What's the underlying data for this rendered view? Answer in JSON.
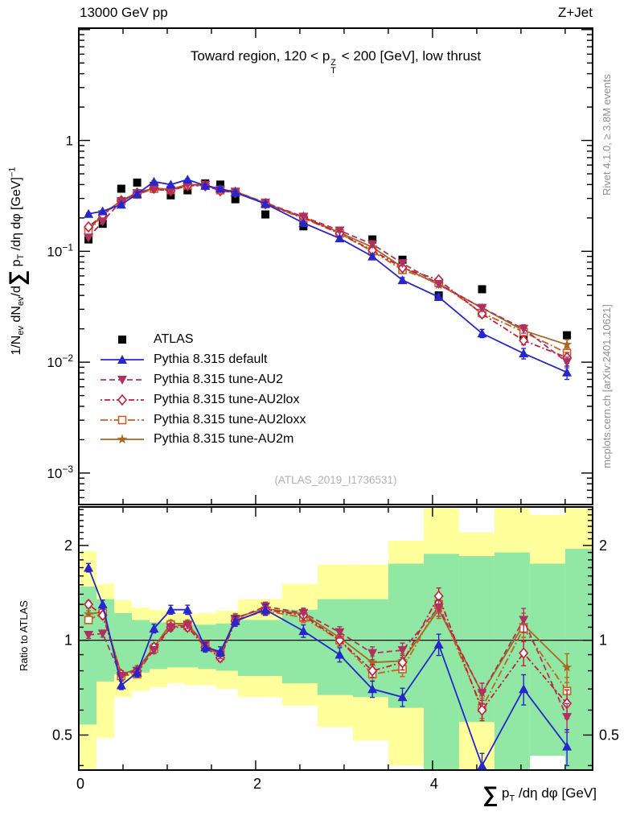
{
  "header": {
    "left": "13000 GeV pp",
    "right": "Z+Jet"
  },
  "title": {
    "pre": "Toward region, 120 < p",
    "sup": "Z",
    "sub": "T",
    "post": " < 200 [GeV], low thrust"
  },
  "watermark": "(ATLAS_2019_I1736531)",
  "side_notes": {
    "top": "Rivet 4.1.0, ≥ 3.8M events",
    "bottom": "mcplots.cern.ch [arXiv:2401.10621]"
  },
  "axes": {
    "x_range": [
      0,
      5.81
    ],
    "x_minor_step": 0.5,
    "x_ticks": [
      {
        "v": 0,
        "t": "0"
      },
      {
        "v": 2,
        "t": "2"
      },
      {
        "v": 4,
        "t": "4"
      }
    ],
    "x_label": {
      "sum": "∑",
      "p": " p",
      "sub": "T",
      "rest": " /dη dφ [GeV]"
    },
    "y_main_range": [
      0.00052,
      10.3
    ],
    "y_main_ticks": [
      {
        "v": 1,
        "t": "1",
        "e": ""
      },
      {
        "v": 0.1,
        "t": "10",
        "e": "−1"
      },
      {
        "v": 0.01,
        "t": "10",
        "e": "−2"
      },
      {
        "v": 0.001,
        "t": "10",
        "e": "−3"
      }
    ],
    "y_main_label": {
      "p1": "1/N",
      "s1": "ev",
      "p2": " dN",
      "s2": "ev",
      "p3": "/d",
      "sum": "∑",
      "p4": " p",
      "s3": "T",
      "p5": " /dη dφ  [GeV]",
      "sup": "−1"
    },
    "y_ratio_range": [
      0.387,
      2.65
    ],
    "y_ratio_ticks": [
      {
        "v": 2,
        "t": "2"
      },
      {
        "v": 1,
        "t": "1"
      },
      {
        "v": 0.5,
        "t": "0.5"
      }
    ],
    "ratio_label": "Ratio to ATLAS"
  },
  "chart_data": {
    "type": "line",
    "title": "Toward region, 120 < pT(Z) < 200 [GeV], low thrust",
    "xlabel": "sum(pT)/deta dphi [GeV]",
    "ylabel": "1/Nev dNev/d sum(pT)/deta dphi [GeV]^-1",
    "ylabel_ratio": "Ratio to ATLAS",
    "x_axis_range": [
      0,
      5.81
    ],
    "y_axis_range_main": [
      0.00052,
      10.3
    ],
    "y_axis_range_ratio": [
      0.387,
      2.65
    ],
    "log_y": true,
    "x": [
      0.11,
      0.27,
      0.48,
      0.66,
      0.85,
      1.04,
      1.23,
      1.43,
      1.6,
      1.77,
      2.11,
      2.54,
      2.95,
      3.32,
      3.66,
      4.07,
      4.56,
      5.03,
      5.52
    ],
    "series": [
      {
        "name": "atlas",
        "label": "ATLAS",
        "color": "#000000",
        "marker": "square-filled",
        "line": "none",
        "values": [
          0.128,
          0.177,
          0.367,
          0.417,
          0.39,
          0.32,
          0.355,
          0.41,
          0.4,
          0.295,
          0.215,
          0.168,
          0.145,
          0.128,
          0.084,
          0.04,
          0.0455,
          0.0172,
          0.0175
        ]
      },
      {
        "name": "pythia-default",
        "label": "Pythia 8.315 default",
        "color": "#2626cc",
        "marker": "triangle-up-filled",
        "line": "solid",
        "values": [
          0.218,
          0.23,
          0.264,
          0.329,
          0.425,
          0.4,
          0.444,
          0.39,
          0.368,
          0.339,
          0.269,
          0.18,
          0.131,
          0.09,
          0.055,
          0.0388,
          0.0182,
          0.012,
          0.0081
        ],
        "ratio": [
          1.7,
          1.3,
          0.72,
          0.79,
          1.09,
          1.25,
          1.25,
          0.95,
          0.92,
          1.15,
          1.25,
          1.07,
          0.9,
          0.7,
          0.66,
          0.97,
          0.4,
          0.7,
          0.46
        ]
      },
      {
        "name": "tune-AU2",
        "label": "Pythia 8.315 tune-AU2",
        "color": "#b03060",
        "marker": "triangle-down-filled",
        "line": "dashed",
        "values": [
          0.133,
          0.186,
          0.283,
          0.334,
          0.363,
          0.352,
          0.398,
          0.398,
          0.36,
          0.345,
          0.275,
          0.205,
          0.154,
          0.116,
          0.078,
          0.0508,
          0.0309,
          0.02,
          0.01
        ],
        "ratio": [
          1.04,
          1.05,
          0.77,
          0.8,
          0.93,
          1.1,
          1.12,
          0.97,
          0.9,
          1.17,
          1.28,
          1.22,
          1.06,
          0.91,
          0.93,
          1.27,
          0.68,
          1.16,
          0.57
        ]
      },
      {
        "name": "tune-AU2lox",
        "label": "Pythia 8.315 tune-AU2lox",
        "color": "#c41e3a",
        "marker": "diamond-open",
        "line": "dashdot",
        "values": [
          0.166,
          0.212,
          0.286,
          0.334,
          0.371,
          0.352,
          0.391,
          0.39,
          0.352,
          0.339,
          0.269,
          0.202,
          0.145,
          0.102,
          0.071,
          0.0552,
          0.0273,
          0.0157,
          0.011
        ],
        "ratio": [
          1.3,
          1.2,
          0.78,
          0.8,
          0.95,
          1.1,
          1.1,
          0.95,
          0.88,
          1.15,
          1.25,
          1.2,
          1.0,
          0.8,
          0.85,
          1.38,
          0.6,
          0.91,
          0.63
        ]
      },
      {
        "name": "tune-AU2loxx",
        "label": "Pythia 8.315 tune-AU2loxx",
        "color": "#c8601e",
        "marker": "square-open",
        "line": "dashdotlong",
        "values": [
          0.148,
          0.216,
          0.283,
          0.325,
          0.367,
          0.358,
          0.394,
          0.394,
          0.356,
          0.342,
          0.267,
          0.198,
          0.145,
          0.1,
          0.068,
          0.052,
          0.0278,
          0.0187,
          0.0121
        ],
        "ratio": [
          1.16,
          1.22,
          0.77,
          0.78,
          0.94,
          1.12,
          1.11,
          0.96,
          0.89,
          1.16,
          1.24,
          1.18,
          1.0,
          0.78,
          0.81,
          1.3,
          0.61,
          1.09,
          0.69
        ]
      },
      {
        "name": "tune-AU2m",
        "label": "Pythia 8.315 tune-AU2m",
        "color": "#a9661f",
        "marker": "star-filled",
        "line": "solid",
        "values": [
          0.155,
          0.218,
          0.286,
          0.338,
          0.371,
          0.362,
          0.401,
          0.394,
          0.36,
          0.348,
          0.271,
          0.203,
          0.148,
          0.109,
          0.072,
          0.05,
          0.0309,
          0.0193,
          0.0144
        ],
        "ratio": [
          1.21,
          1.23,
          0.78,
          0.81,
          0.95,
          1.13,
          1.13,
          0.96,
          0.9,
          1.18,
          1.26,
          1.21,
          1.02,
          0.85,
          0.86,
          1.25,
          0.68,
          1.12,
          0.82
        ]
      }
    ],
    "ratio_bands": {
      "bin_edges": [
        0,
        0.2,
        0.4,
        0.6,
        0.8,
        1.0,
        1.2,
        1.35,
        1.55,
        1.8,
        2.3,
        2.7,
        3.1,
        3.5,
        3.9,
        4.3,
        4.7,
        5.1,
        5.5,
        5.81
      ],
      "yellow": [
        [
          0.3,
          1.92
        ],
        [
          0.49,
          1.51
        ],
        [
          0.66,
          1.34
        ],
        [
          0.69,
          1.27
        ],
        [
          0.71,
          1.25
        ],
        [
          0.73,
          1.22
        ],
        [
          0.72,
          1.21
        ],
        [
          0.72,
          1.22
        ],
        [
          0.7,
          1.24
        ],
        [
          0.66,
          1.35
        ],
        [
          0.62,
          1.51
        ],
        [
          0.53,
          1.74
        ],
        [
          0.48,
          1.74
        ],
        [
          0.4,
          2.07
        ],
        [
          0.3,
          2.7
        ],
        [
          0.3,
          2.2
        ],
        [
          0.3,
          2.7
        ],
        [
          0.43,
          2.5
        ],
        [
          0.3,
          2.7
        ]
      ],
      "green": [
        [
          0.54,
          1.48
        ],
        [
          0.74,
          1.35
        ],
        [
          0.78,
          1.22
        ],
        [
          0.79,
          1.16
        ],
        [
          0.81,
          1.14
        ],
        [
          0.82,
          1.13
        ],
        [
          0.82,
          1.12
        ],
        [
          0.81,
          1.12
        ],
        [
          0.8,
          1.13
        ],
        [
          0.77,
          1.16
        ],
        [
          0.73,
          1.25
        ],
        [
          0.67,
          1.35
        ],
        [
          0.66,
          1.35
        ],
        [
          0.61,
          1.75
        ],
        [
          0.3,
          1.88
        ],
        [
          0.55,
          1.85
        ],
        [
          0.3,
          1.9
        ],
        [
          0.43,
          1.75
        ],
        [
          0.3,
          1.95
        ]
      ]
    },
    "band_colors": {
      "yellow": "#ffff9c",
      "green": "#90e8a4"
    },
    "unity_line": 1
  }
}
